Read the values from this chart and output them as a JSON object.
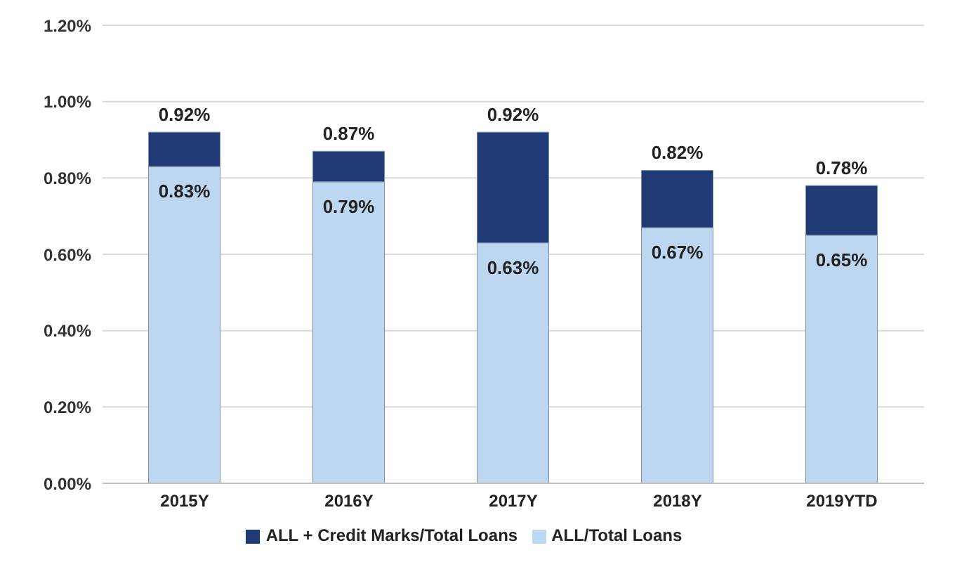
{
  "chart_data": {
    "type": "bar",
    "stacked": true,
    "categories": [
      "2015Y",
      "2016Y",
      "2017Y",
      "2018Y",
      "2019YTD"
    ],
    "series": [
      {
        "name": "ALL/Total Loans",
        "color": "#bcd7ef",
        "values": [
          0.83,
          0.79,
          0.63,
          0.67,
          0.65
        ],
        "value_labels": [
          "0.83%",
          "0.79%",
          "0.63%",
          "0.67%",
          "0.65%"
        ]
      },
      {
        "name": "ALL + Credit Marks/Total Loans",
        "color": "#1f3a75",
        "values": [
          0.09,
          0.08,
          0.29,
          0.15,
          0.13
        ]
      }
    ],
    "totals": [
      "0.92%",
      "0.87%",
      "0.92%",
      "0.82%",
      "0.78%"
    ],
    "ylim": [
      0,
      1.2
    ],
    "yticks": [
      {
        "value": 0,
        "label": "0.00%"
      },
      {
        "value": 0.2,
        "label": "0.20%"
      },
      {
        "value": 0.4,
        "label": "0.40%"
      },
      {
        "value": 0.6,
        "label": "0.60%"
      },
      {
        "value": 0.8,
        "label": "0.80%"
      },
      {
        "value": 1.0,
        "label": "1.00%"
      },
      {
        "value": 1.2,
        "label": "1.20%"
      }
    ],
    "grid": "y",
    "legend": "bottom"
  }
}
